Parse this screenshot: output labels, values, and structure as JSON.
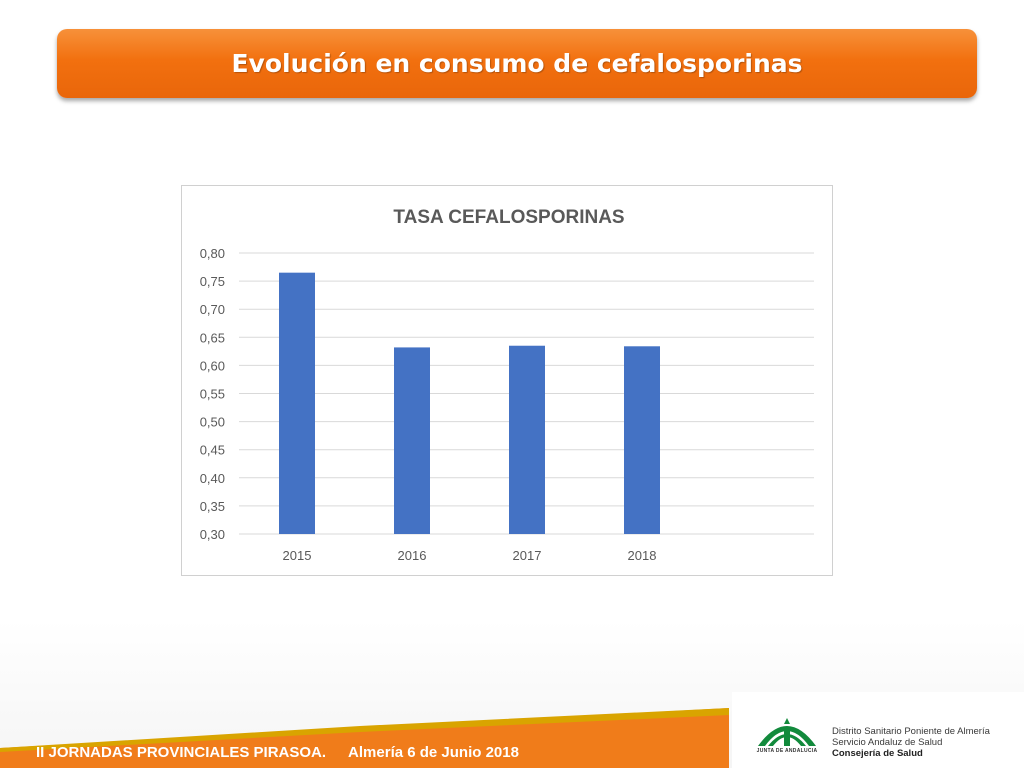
{
  "slide": {
    "title": "Evolución en consumo de cefalosporinas"
  },
  "chart_data": {
    "type": "bar",
    "title": "TASA CEFALOSPORINAS",
    "categories": [
      "2015",
      "2016",
      "2017",
      "2018"
    ],
    "values": [
      0.765,
      0.632,
      0.635,
      0.634
    ],
    "ylim": [
      0.3,
      0.8
    ],
    "yticks": [
      "0,80",
      "0,75",
      "0,70",
      "0,65",
      "0,60",
      "0,55",
      "0,50",
      "0,45",
      "0,40",
      "0,35",
      "0,30"
    ],
    "grid": true,
    "bar_color": "#4472c4"
  },
  "footer": {
    "event": "II JORNADAS PROVINCIALES PIRASOA.",
    "place_date": "Almería 6 de Junio 2018",
    "logo_caption": "JUNTA DE ANDALUCIA",
    "org_lines": [
      "Distrito Sanitario Poniente de Almería",
      "Servicio Andaluz de Salud",
      "Consejería de Salud"
    ]
  },
  "colors": {
    "banner": "#f2700f",
    "footer_orange": "#f07c1a",
    "footer_gold": "#d9a400",
    "logo_green": "#128a3c"
  }
}
